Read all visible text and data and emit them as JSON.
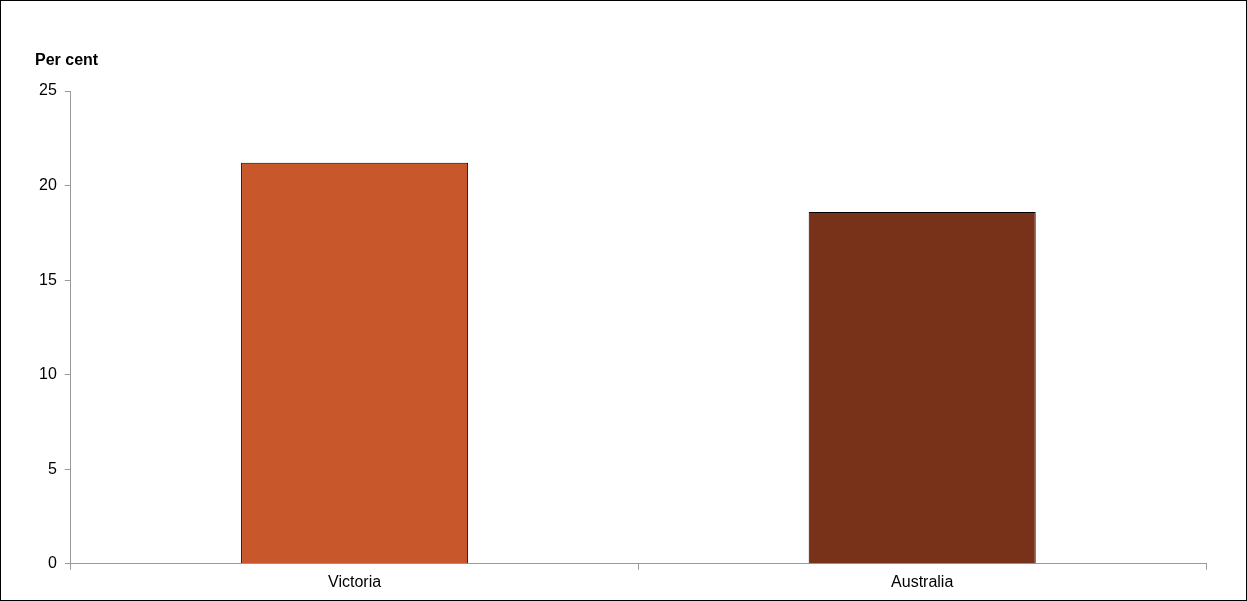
{
  "chart_data": {
    "type": "bar",
    "ylabel": "Per cent",
    "categories": [
      "Victoria",
      "Australia"
    ],
    "values": [
      21.2,
      18.6
    ],
    "colors": [
      "#c9572c",
      "#78321a"
    ],
    "ylim": [
      0,
      25
    ],
    "yticks": [
      0,
      5,
      10,
      15,
      20,
      25
    ],
    "grid": false,
    "legend": false
  }
}
